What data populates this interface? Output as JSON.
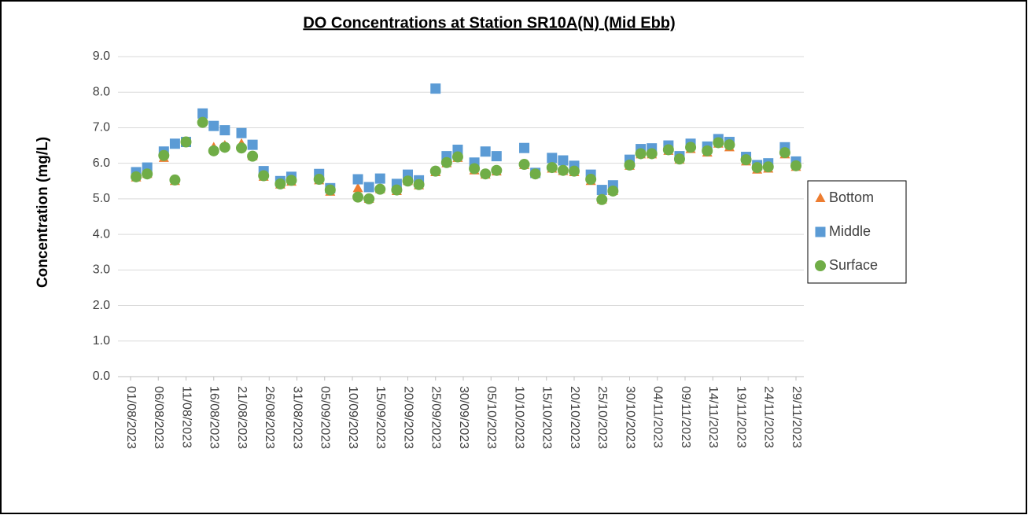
{
  "chart_data": {
    "type": "scatter",
    "title": "DO Concentrations at Station SR10A(N) (Mid Ebb)",
    "y_label": "Concentration (mg/L)",
    "x": [
      "02/08/2023",
      "04/08/2023",
      "07/08/2023",
      "09/08/2023",
      "11/08/2023",
      "14/08/2023",
      "16/08/2023",
      "18/08/2023",
      "21/08/2023",
      "23/08/2023",
      "25/08/2023",
      "28/08/2023",
      "30/08/2023",
      "04/09/2023",
      "06/09/2023",
      "11/09/2023",
      "13/09/2023",
      "15/09/2023",
      "18/09/2023",
      "20/09/2023",
      "22/09/2023",
      "25/09/2023",
      "27/09/2023",
      "29/09/2023",
      "02/10/2023",
      "04/10/2023",
      "06/10/2023",
      "11/10/2023",
      "13/10/2023",
      "16/10/2023",
      "18/10/2023",
      "20/10/2023",
      "23/10/2023",
      "25/10/2023",
      "27/10/2023",
      "30/10/2023",
      "01/11/2023",
      "03/11/2023",
      "06/11/2023",
      "08/11/2023",
      "10/11/2023",
      "13/11/2023",
      "15/11/2023",
      "17/11/2023",
      "20/11/2023",
      "22/11/2023",
      "24/11/2023",
      "27/11/2023",
      "29/11/2023"
    ],
    "series": [
      {
        "name": "Bottom",
        "color": "#ed7d31",
        "marker": "triangle",
        "values": [
          5.6,
          5.7,
          6.15,
          5.5,
          6.6,
          7.2,
          6.45,
          6.5,
          6.55,
          6.2,
          5.62,
          5.4,
          5.48,
          5.52,
          5.2,
          5.3,
          5.0,
          5.27,
          5.22,
          5.5,
          5.38,
          5.75,
          6.0,
          6.15,
          5.8,
          5.68,
          5.77,
          5.95,
          5.7,
          5.85,
          5.78,
          5.75,
          5.5,
          4.98,
          5.22,
          5.93,
          6.25,
          6.25,
          6.35,
          6.1,
          6.4,
          6.3,
          6.55,
          6.45,
          6.05,
          5.82,
          5.85,
          6.25,
          5.9
        ]
      },
      {
        "name": "Middle",
        "color": "#5b9bd5",
        "marker": "square",
        "values": [
          5.75,
          5.88,
          6.33,
          6.55,
          6.6,
          7.4,
          7.05,
          6.93,
          6.85,
          6.52,
          5.78,
          5.5,
          5.62,
          5.7,
          5.3,
          5.55,
          5.33,
          5.57,
          5.42,
          5.68,
          5.52,
          8.1,
          6.2,
          6.38,
          6.02,
          6.33,
          6.2,
          6.43,
          5.73,
          6.15,
          6.08,
          5.93,
          5.68,
          5.25,
          5.38,
          6.1,
          6.4,
          6.42,
          6.5,
          6.2,
          6.55,
          6.47,
          6.68,
          6.6,
          6.18,
          5.95,
          6.0,
          6.45,
          6.05
        ]
      },
      {
        "name": "Surface",
        "color": "#70ad47",
        "marker": "circle",
        "values": [
          5.62,
          5.7,
          6.22,
          5.53,
          6.6,
          7.15,
          6.35,
          6.45,
          6.43,
          6.2,
          5.65,
          5.42,
          5.52,
          5.55,
          5.25,
          5.05,
          5.0,
          5.27,
          5.25,
          5.5,
          5.4,
          5.78,
          6.02,
          6.18,
          5.85,
          5.7,
          5.8,
          5.97,
          5.7,
          5.88,
          5.8,
          5.78,
          5.55,
          4.98,
          5.22,
          5.95,
          6.27,
          6.27,
          6.38,
          6.12,
          6.45,
          6.35,
          6.58,
          6.52,
          6.1,
          5.88,
          5.9,
          6.3,
          5.93
        ]
      }
    ],
    "xlim": [
      "01/08/2023",
      "29/11/2023"
    ],
    "xticks": [
      "01/08/2023",
      "06/08/2023",
      "11/08/2023",
      "16/08/2023",
      "21/08/2023",
      "26/08/2023",
      "31/08/2023",
      "05/09/2023",
      "10/09/2023",
      "15/09/2023",
      "20/09/2023",
      "25/09/2023",
      "30/09/2023",
      "05/10/2023",
      "10/10/2023",
      "15/10/2023",
      "20/10/2023",
      "25/10/2023",
      "30/10/2023",
      "04/11/2023",
      "09/11/2023",
      "14/11/2023",
      "19/11/2023",
      "24/11/2023",
      "29/11/2023"
    ],
    "ylim": [
      0,
      9
    ],
    "yticks": [
      {
        "value": 0,
        "label": "0.0"
      },
      {
        "value": 1,
        "label": "1.0"
      },
      {
        "value": 2,
        "label": "2.0"
      },
      {
        "value": 3,
        "label": "3.0"
      },
      {
        "value": 4,
        "label": "4.0"
      },
      {
        "value": 5,
        "label": "5.0"
      },
      {
        "value": 6,
        "label": "6.0"
      },
      {
        "value": 7,
        "label": "7.0"
      },
      {
        "value": 8,
        "label": "8.0"
      },
      {
        "value": 9,
        "label": "9.0"
      }
    ],
    "grid": true,
    "legend": "right"
  }
}
